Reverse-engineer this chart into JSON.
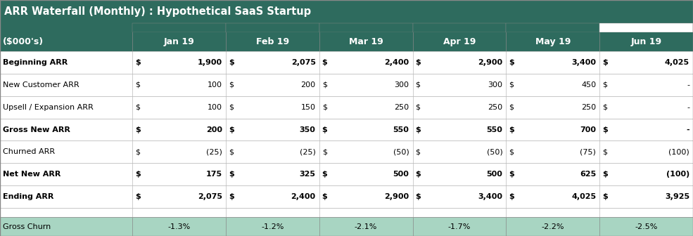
{
  "title": "ARR Waterfall (Monthly) : Hypothetical SaaS Startup",
  "header_bg": "#2e6b5e",
  "header_text_color": "#ffffff",
  "row_label_col": "($000's)",
  "months": [
    "Jan 19",
    "Feb 19",
    "Mar 19",
    "Apr 19",
    "May 19",
    "Jun 19"
  ],
  "rows": [
    {
      "label": "Beginning ARR",
      "bold": true,
      "values": [
        1900,
        2075,
        2400,
        2900,
        3400,
        4025
      ]
    },
    {
      "label": "New Customer ARR",
      "bold": false,
      "values": [
        100,
        200,
        300,
        300,
        450,
        null
      ]
    },
    {
      "label": "Upsell / Expansion ARR",
      "bold": false,
      "values": [
        100,
        150,
        250,
        250,
        250,
        null
      ]
    },
    {
      "label": "Gross New ARR",
      "bold": true,
      "values": [
        200,
        350,
        550,
        550,
        700,
        null
      ]
    },
    {
      "label": "Churned ARR",
      "bold": false,
      "values": [
        -25,
        -25,
        -50,
        -50,
        -75,
        -100
      ]
    },
    {
      "label": "Net New ARR",
      "bold": true,
      "values": [
        175,
        325,
        500,
        500,
        625,
        -100
      ]
    },
    {
      "label": "Ending ARR",
      "bold": true,
      "values": [
        2075,
        2400,
        2900,
        3400,
        4025,
        3925
      ]
    }
  ],
  "gross_churn": [
    "-1.3%",
    "-1.2%",
    "-2.1%",
    "-1.7%",
    "-2.2%",
    "-2.5%"
  ],
  "gross_churn_label": "Gross Churn",
  "churn_row_bg": "#a8d5c2",
  "border_color": "#888888",
  "grid_color": "#bbbbbb",
  "body_fontsize": 8.0,
  "header_fontsize": 9.0,
  "title_fontsize": 10.5
}
